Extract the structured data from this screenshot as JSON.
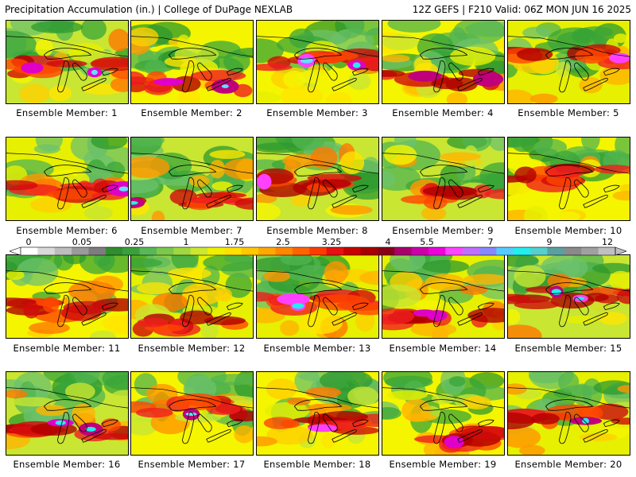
{
  "header": {
    "title_left": "Precipitation Accumulation (in.) | College of DuPage NEXLAB",
    "title_right": "12Z GEFS | F210 Valid: 06Z MON JUN 16 2025"
  },
  "members": [
    {
      "label": "Ensemble Member: 1"
    },
    {
      "label": "Ensemble Member: 2"
    },
    {
      "label": "Ensemble Member: 3"
    },
    {
      "label": "Ensemble Member: 4"
    },
    {
      "label": "Ensemble Member: 5"
    },
    {
      "label": "Ensemble Member: 6"
    },
    {
      "label": "Ensemble Member: 7"
    },
    {
      "label": "Ensemble Member: 8"
    },
    {
      "label": "Ensemble Member: 9"
    },
    {
      "label": "Ensemble Member: 10"
    },
    {
      "label": "Ensemble Member: 11"
    },
    {
      "label": "Ensemble Member: 12"
    },
    {
      "label": "Ensemble Member: 13"
    },
    {
      "label": "Ensemble Member: 14"
    },
    {
      "label": "Ensemble Member: 15"
    },
    {
      "label": "Ensemble Member: 16"
    },
    {
      "label": "Ensemble Member: 17"
    },
    {
      "label": "Ensemble Member: 18"
    },
    {
      "label": "Ensemble Member: 19"
    },
    {
      "label": "Ensemble Member: 20"
    }
  ],
  "colorbar": {
    "tick_labels": [
      "0",
      "0.05",
      "0.25",
      "1",
      "1.75",
      "2.5",
      "3.25",
      "4",
      "5.5",
      "7",
      "9",
      "12"
    ],
    "colors": [
      "#ffffff",
      "#d9d9d9",
      "#bdbdbd",
      "#9a9a9a",
      "#7d7d7d",
      "#2f8f2f",
      "#3aa03a",
      "#58b858",
      "#7cc84a",
      "#a0d840",
      "#cce830",
      "#f0f000",
      "#ffe000",
      "#ffc800",
      "#ffa800",
      "#ff8800",
      "#ff6400",
      "#ff3c00",
      "#e81010",
      "#c80000",
      "#a80000",
      "#880018",
      "#a8006c",
      "#cc00a8",
      "#ee00dd",
      "#ff44ff",
      "#c070ff",
      "#8888ff",
      "#55ccff",
      "#22eeee",
      "#55d0cc",
      "#5aa0a0",
      "#8a8a8a",
      "#a0a0a0",
      "#c0c0c0"
    ]
  }
}
